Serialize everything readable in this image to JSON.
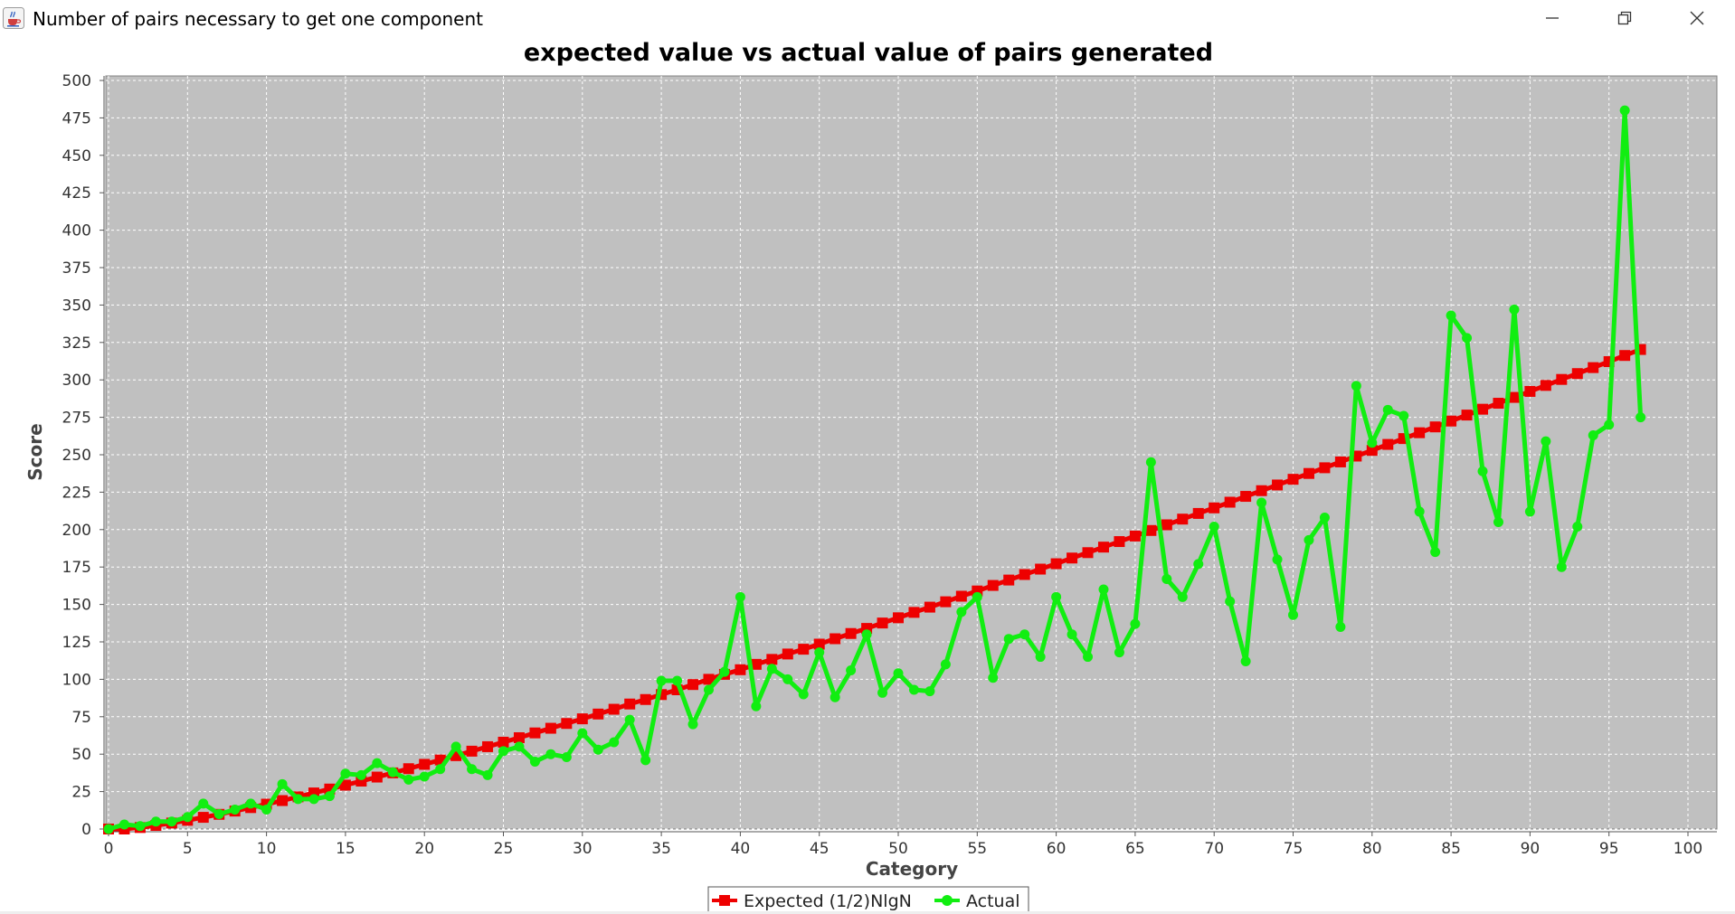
{
  "window": {
    "title": "Number of pairs necessary to get one component",
    "icon": "java-cup-icon",
    "controls": [
      "minimize-icon",
      "restore-icon",
      "close-icon"
    ]
  },
  "colors": {
    "plot_background": "#c0c0c0",
    "gridline": "#ffffff",
    "expected": "#ee0000",
    "actual": "#11ee11"
  },
  "chart_data": {
    "type": "line",
    "title": "expected value vs actual value of pairs generated",
    "xlabel": "Category",
    "ylabel": "Score",
    "xlim": [
      0,
      100
    ],
    "ylim": [
      0,
      500
    ],
    "xticks": [
      0,
      5,
      10,
      15,
      20,
      25,
      30,
      35,
      40,
      45,
      50,
      55,
      60,
      65,
      70,
      75,
      80,
      85,
      90,
      95,
      100
    ],
    "yticks": [
      0,
      25,
      50,
      75,
      100,
      125,
      150,
      175,
      200,
      225,
      250,
      275,
      300,
      325,
      350,
      375,
      400,
      425,
      450,
      475,
      500
    ],
    "grid": true,
    "legend_position": "bottom-center",
    "series": [
      {
        "name": "Expected (1/2)NlgN",
        "marker": "square",
        "x": [
          0,
          1,
          2,
          3,
          4,
          5,
          6,
          7,
          8,
          9,
          10,
          11,
          12,
          13,
          14,
          15,
          16,
          17,
          18,
          19,
          20,
          21,
          22,
          23,
          24,
          25,
          26,
          27,
          28,
          29,
          30,
          31,
          32,
          33,
          34,
          35,
          36,
          37,
          38,
          39,
          40,
          41,
          42,
          43,
          44,
          45,
          46,
          47,
          48,
          49,
          50,
          51,
          52,
          53,
          54,
          55,
          56,
          57,
          58,
          59,
          60,
          61,
          62,
          63,
          64,
          65,
          66,
          67,
          68,
          69,
          70,
          71,
          72,
          73,
          74,
          75,
          76,
          77,
          78,
          79,
          80,
          81,
          82,
          83,
          84,
          85,
          86,
          87,
          88,
          89,
          90,
          91,
          92,
          93,
          94,
          95,
          96,
          97
        ],
        "values": [
          0,
          0,
          1,
          2.4,
          4,
          5.8,
          7.8,
          9.8,
          12,
          14.3,
          16.6,
          19,
          21.5,
          24.1,
          26.7,
          29.3,
          32,
          34.7,
          37.5,
          40.3,
          43.2,
          46.1,
          49,
          52,
          55,
          58,
          61,
          64.2,
          67.3,
          70.5,
          73.6,
          76.8,
          80,
          83.5,
          86.5,
          89.8,
          93,
          96.5,
          100,
          103.3,
          106.4,
          110,
          113.3,
          116.9,
          120.1,
          123.5,
          127.1,
          130.6,
          134,
          137.6,
          141.1,
          144.7,
          148.2,
          151.8,
          155.5,
          159,
          162.7,
          166.3,
          170,
          173.6,
          177.2,
          181,
          184.6,
          188.3,
          192,
          195.7,
          199.4,
          203.2,
          207,
          210.8,
          214.5,
          218.3,
          222.2,
          226,
          229.8,
          233.6,
          237.5,
          241.3,
          245.2,
          249.1,
          252.9,
          256.9,
          260.8,
          264.7,
          268.6,
          272.5,
          276.5,
          280.4,
          284.4,
          288.3,
          292.3,
          296.3,
          300.3,
          304.2,
          308.2,
          312.2,
          316.3,
          320.3
        ]
      },
      {
        "name": "Actual",
        "marker": "circle",
        "x": [
          0,
          1,
          2,
          3,
          4,
          5,
          6,
          7,
          8,
          9,
          10,
          11,
          12,
          13,
          14,
          15,
          16,
          17,
          18,
          19,
          20,
          21,
          22,
          23,
          24,
          25,
          26,
          27,
          28,
          29,
          30,
          31,
          32,
          33,
          34,
          35,
          36,
          37,
          38,
          39,
          40,
          41,
          42,
          43,
          44,
          45,
          46,
          47,
          48,
          49,
          50,
          51,
          52,
          53,
          54,
          55,
          56,
          57,
          58,
          59,
          60,
          61,
          62,
          63,
          64,
          65,
          66,
          67,
          68,
          69,
          70,
          71,
          72,
          73,
          74,
          75,
          76,
          77,
          78,
          79,
          80,
          81,
          82,
          83,
          84,
          85,
          86,
          87,
          88,
          89,
          90,
          91,
          92,
          93,
          94,
          95,
          96,
          97
        ],
        "values": [
          0,
          3,
          2,
          5,
          5,
          8,
          17,
          10,
          13,
          17,
          13,
          30,
          20,
          20,
          22,
          37,
          36,
          44,
          38,
          33,
          35,
          40,
          55,
          40,
          36,
          52,
          55,
          45,
          50,
          48,
          64,
          53,
          58,
          73,
          46,
          99,
          99,
          70,
          93,
          105,
          155,
          82,
          107,
          100,
          90,
          118,
          88,
          106,
          130,
          91,
          104,
          93,
          92,
          110,
          145,
          155,
          101,
          127,
          130,
          115,
          155,
          130,
          115,
          160,
          118,
          137,
          245,
          167,
          155,
          177,
          202,
          152,
          112,
          218,
          180,
          143,
          193,
          208,
          135,
          296,
          258,
          280,
          276,
          212,
          185,
          343,
          328,
          239,
          205,
          347,
          212,
          259,
          175,
          202,
          263,
          270,
          480,
          275
        ]
      }
    ]
  }
}
